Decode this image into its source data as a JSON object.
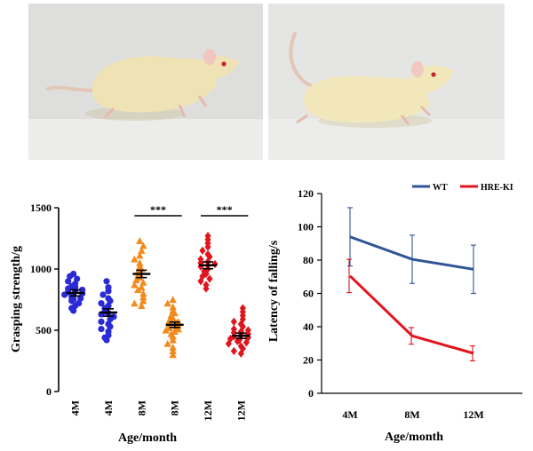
{
  "photos": {
    "left": {
      "icon": "rat-photo-standing",
      "background": "#dedfdc",
      "fur": "#efe3b6",
      "shadow": "#cfc7a8",
      "ear": "#f0c6bf"
    },
    "right": {
      "icon": "rat-photo-crouching",
      "background": "#e5e6e3",
      "fur": "#f1e7bb",
      "shadow": "#d3cbac",
      "ear": "#f2c9c2"
    }
  },
  "chart_data": [
    {
      "type": "scatter",
      "title": "",
      "xlabel": "Age/month",
      "ylabel": "Grasping strength/g",
      "ylim": [
        0,
        1500
      ],
      "yticks": [
        0,
        500,
        1000,
        1500
      ],
      "categories": [
        "4M",
        "4M",
        "8M",
        "8M",
        "12M",
        "12M"
      ],
      "significance": [
        {
          "between": [
            2,
            3
          ],
          "label": "***"
        },
        {
          "between": [
            4,
            5
          ],
          "label": "***"
        }
      ],
      "groups": [
        {
          "category": "4M",
          "color": "#2a2ad6",
          "marker": "circle",
          "mean": 805,
          "sem": 25,
          "points": [
            960,
            940,
            920,
            900,
            880,
            860,
            850,
            840,
            830,
            820,
            810,
            800,
            790,
            780,
            770,
            760,
            750,
            740,
            720,
            700,
            680,
            660
          ]
        },
        {
          "category": "4M",
          "color": "#2a2ad6",
          "marker": "circle",
          "mean": 645,
          "sem": 30,
          "points": [
            900,
            850,
            820,
            790,
            760,
            740,
            720,
            700,
            680,
            660,
            650,
            640,
            630,
            610,
            590,
            570,
            550,
            530,
            510,
            490,
            460,
            440,
            420
          ]
        },
        {
          "category": "8M",
          "color": "#f28a1e",
          "marker": "triangle",
          "mean": 960,
          "sem": 30,
          "points": [
            1230,
            1190,
            1150,
            1110,
            1080,
            1050,
            1020,
            1000,
            980,
            960,
            950,
            930,
            910,
            890,
            870,
            850,
            830,
            800,
            770,
            740,
            720,
            700
          ]
        },
        {
          "category": "8M",
          "color": "#f28a1e",
          "marker": "triangle",
          "mean": 545,
          "sem": 22,
          "points": [
            750,
            720,
            690,
            660,
            640,
            620,
            600,
            580,
            570,
            560,
            550,
            540,
            530,
            520,
            510,
            500,
            490,
            470,
            450,
            420,
            390,
            360,
            330,
            300
          ]
        },
        {
          "category": "12M",
          "color": "#e0161e",
          "marker": "diamond",
          "mean": 1030,
          "sem": 28,
          "points": [
            1270,
            1240,
            1210,
            1180,
            1150,
            1120,
            1100,
            1080,
            1060,
            1050,
            1040,
            1030,
            1020,
            1000,
            980,
            960,
            940,
            920,
            900,
            870,
            840
          ]
        },
        {
          "category": "12M",
          "color": "#e0161e",
          "marker": "diamond",
          "mean": 455,
          "sem": 22,
          "points": [
            680,
            650,
            620,
            590,
            570,
            550,
            530,
            510,
            500,
            490,
            480,
            470,
            460,
            450,
            440,
            430,
            420,
            410,
            400,
            390,
            370,
            350,
            330,
            310
          ]
        }
      ]
    },
    {
      "type": "line",
      "title": "",
      "xlabel": "Age/month",
      "ylabel": "Latency of falling/s",
      "ylim": [
        0,
        120
      ],
      "yticks": [
        0,
        20,
        40,
        60,
        80,
        100,
        120
      ],
      "categories": [
        "4M",
        "8M",
        "12M"
      ],
      "legend_position": "top-right",
      "series": [
        {
          "name": "WT",
          "color": "#2f5597",
          "values": [
            94,
            80.5,
            74.5
          ],
          "errors": [
            17.5,
            14.5,
            14.5
          ]
        },
        {
          "name": "HRE-KI",
          "color": "#e0161e",
          "values": [
            70.5,
            34.5,
            24
          ],
          "errors": [
            10,
            5,
            4.5
          ]
        }
      ]
    }
  ]
}
